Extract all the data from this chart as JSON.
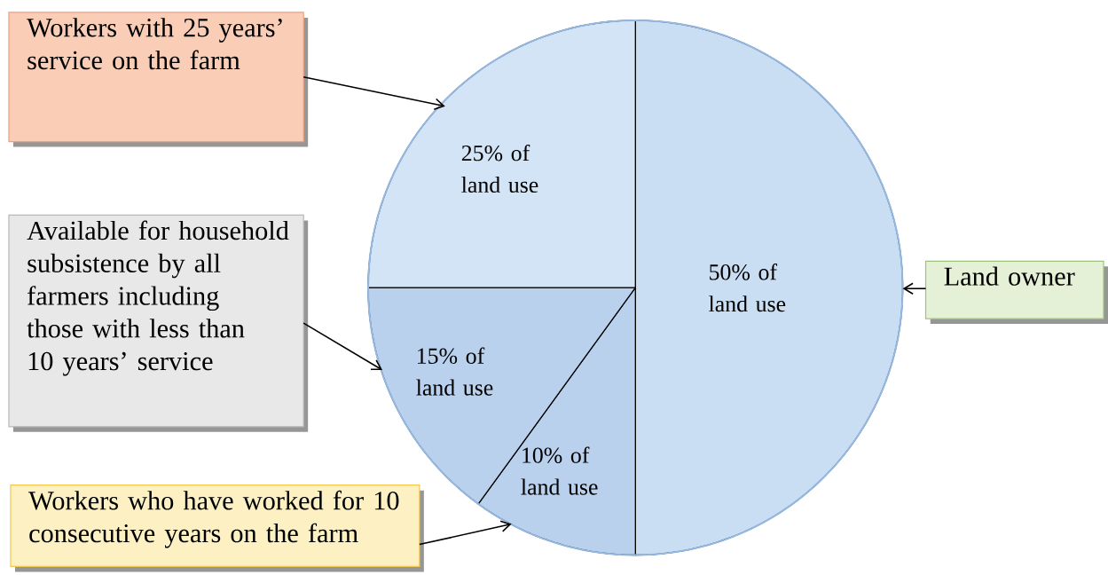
{
  "chart_data": {
    "type": "pie",
    "categories": [
      "Land owner",
      "Workers who have worked for 10 consecutive years on the farm",
      "Available for household subsistence by all farmers including those with less than 10 years’ service",
      "Workers with 25 years’ service on the farm"
    ],
    "values": [
      50,
      10,
      15,
      25
    ],
    "colors": [
      "#cadef3",
      "#b9d1ed",
      "#b9d1ed",
      "#d3e4f6"
    ],
    "value_labels": [
      "50% of land use",
      "10% of land use",
      "15% of land use",
      "25% of land use"
    ]
  }
}
